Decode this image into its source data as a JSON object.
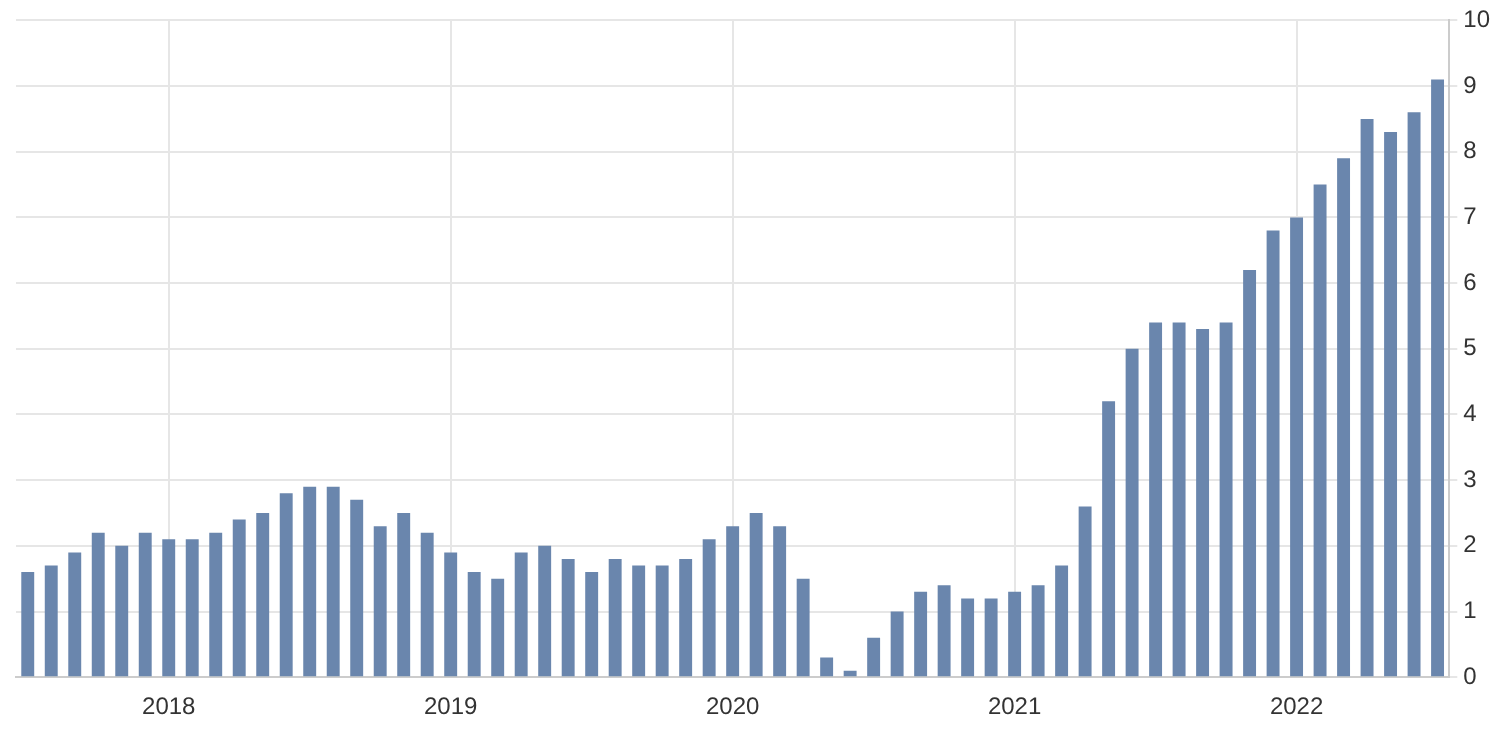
{
  "chart_data": {
    "type": "bar",
    "categories": [
      null,
      null,
      null,
      null,
      null,
      null,
      "2018",
      null,
      null,
      null,
      null,
      null,
      null,
      null,
      null,
      null,
      null,
      null,
      "2019",
      null,
      null,
      null,
      null,
      null,
      null,
      null,
      null,
      null,
      null,
      null,
      "2020",
      null,
      null,
      null,
      null,
      null,
      null,
      null,
      null,
      null,
      null,
      null,
      "2021",
      null,
      null,
      null,
      null,
      null,
      null,
      null,
      null,
      null,
      null,
      null,
      "2022",
      null,
      null,
      null,
      null,
      null,
      null
    ],
    "values": [
      1.6,
      1.7,
      1.9,
      2.2,
      2.0,
      2.2,
      2.1,
      2.1,
      2.2,
      2.4,
      2.5,
      2.8,
      2.9,
      2.9,
      2.7,
      2.3,
      2.5,
      2.2,
      1.9,
      1.6,
      1.5,
      1.9,
      2.0,
      1.8,
      1.6,
      1.8,
      1.7,
      1.7,
      1.8,
      2.1,
      2.3,
      2.5,
      2.3,
      1.5,
      0.3,
      0.1,
      0.6,
      1.0,
      1.3,
      1.4,
      1.2,
      1.2,
      1.3,
      1.4,
      1.7,
      2.6,
      4.2,
      5.0,
      5.4,
      5.4,
      5.3,
      5.4,
      6.2,
      6.8,
      7.0,
      7.5,
      7.9,
      8.5,
      8.3,
      8.6,
      9.1
    ],
    "color": "#6a86ad",
    "ylim": [
      0,
      10
    ],
    "yticks": [
      0,
      1,
      2,
      3,
      4,
      5,
      6,
      7,
      8,
      9,
      10
    ],
    "grid": true,
    "legend": false
  }
}
